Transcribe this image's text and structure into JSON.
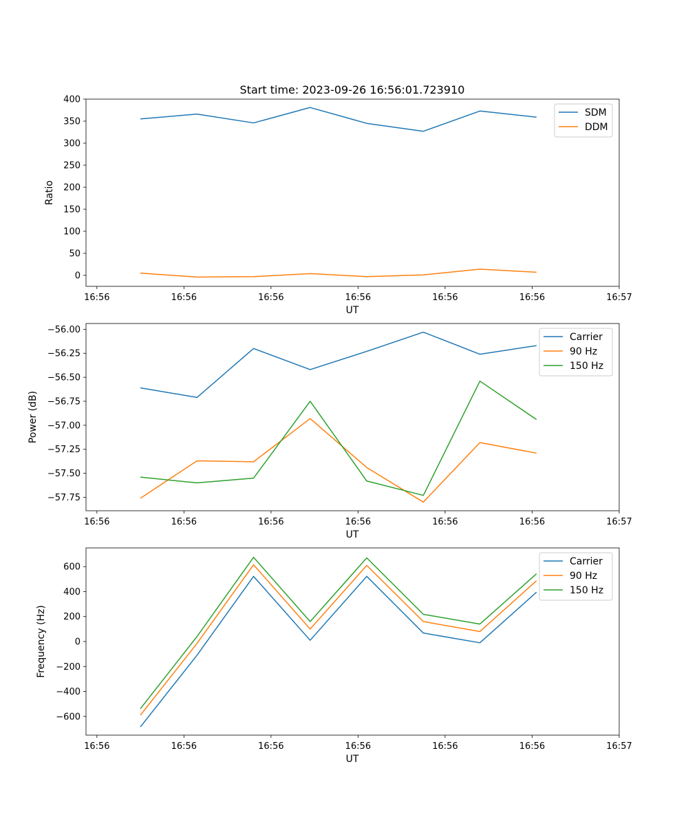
{
  "figure": {
    "title": "Start time: 2023-09-26 16:56:01.723910"
  },
  "colors": {
    "blue": "#1f77b4",
    "orange": "#ff7f0e",
    "green": "#2ca02c"
  },
  "chart_data": [
    {
      "type": "line",
      "title": "Start time: 2023-09-26 16:56:01.723910",
      "xlabel": "UT",
      "ylabel": "Ratio",
      "x": [
        0.5,
        1.15,
        1.8,
        2.45,
        3.1,
        3.75,
        4.4,
        5.05
      ],
      "xlim": [
        -0.125,
        6.0
      ],
      "xticks": [
        0,
        1,
        2,
        3,
        4,
        5,
        6
      ],
      "xtick_labels": [
        "16:56",
        "16:56",
        "16:56",
        "16:56",
        "16:56",
        "16:56",
        "16:57"
      ],
      "ylim": [
        -25,
        400
      ],
      "yticks": [
        0,
        50,
        100,
        150,
        200,
        250,
        300,
        350,
        400
      ],
      "legend": "top-right",
      "series": [
        {
          "name": "SDM",
          "color": "#1f77b4",
          "values": [
            355,
            366,
            346,
            381,
            345,
            327,
            373,
            359
          ]
        },
        {
          "name": "DDM",
          "color": "#ff7f0e",
          "values": [
            5,
            -4,
            -3,
            4,
            -3,
            1,
            14,
            7
          ]
        }
      ]
    },
    {
      "type": "line",
      "xlabel": "UT",
      "ylabel": "Power (dB)",
      "x": [
        0.5,
        1.15,
        1.8,
        2.45,
        3.1,
        3.75,
        4.4,
        5.05
      ],
      "xlim": [
        -0.125,
        6.0
      ],
      "xticks": [
        0,
        1,
        2,
        3,
        4,
        5,
        6
      ],
      "xtick_labels": [
        "16:56",
        "16:56",
        "16:56",
        "16:56",
        "16:56",
        "16:56",
        "16:57"
      ],
      "ylim": [
        -57.89,
        -55.94
      ],
      "yticks": [
        -57.75,
        -57.5,
        -57.25,
        -57.0,
        -56.75,
        -56.5,
        -56.25,
        -56.0
      ],
      "ytick_labels": [
        "−57.75",
        "−57.50",
        "−57.25",
        "−57.00",
        "−56.75",
        "−56.50",
        "−56.25",
        "−56.00"
      ],
      "legend": "top-right",
      "series": [
        {
          "name": "Carrier",
          "color": "#1f77b4",
          "values": [
            -56.61,
            -56.71,
            -56.2,
            -56.42,
            -56.23,
            -56.03,
            -56.26,
            -56.17
          ]
        },
        {
          "name": "90 Hz",
          "color": "#ff7f0e",
          "values": [
            -57.76,
            -57.37,
            -57.38,
            -56.93,
            -57.44,
            -57.8,
            -57.18,
            -57.29
          ]
        },
        {
          "name": "150 Hz",
          "color": "#2ca02c",
          "values": [
            -57.54,
            -57.6,
            -57.55,
            -56.75,
            -57.58,
            -57.73,
            -56.54,
            -56.94
          ]
        }
      ]
    },
    {
      "type": "line",
      "xlabel": "UT",
      "ylabel": "Frequency (Hz)",
      "x": [
        0.5,
        1.15,
        1.8,
        2.45,
        3.1,
        3.75,
        4.4,
        5.05
      ],
      "xlim": [
        -0.125,
        6.0
      ],
      "xticks": [
        0,
        1,
        2,
        3,
        4,
        5,
        6
      ],
      "xtick_labels": [
        "16:56",
        "16:56",
        "16:56",
        "16:56",
        "16:56",
        "16:56",
        "16:57"
      ],
      "ylim": [
        -750,
        750
      ],
      "yticks": [
        -600,
        -400,
        -200,
        0,
        200,
        400,
        600
      ],
      "ytick_labels": [
        "−600",
        "−400",
        "−200",
        "0",
        "200",
        "400",
        "600"
      ],
      "legend": "top-right",
      "series": [
        {
          "name": "Carrier",
          "color": "#1f77b4",
          "values": [
            -684,
            -110,
            522,
            10,
            522,
            68,
            -10,
            395
          ]
        },
        {
          "name": "90 Hz",
          "color": "#ff7f0e",
          "values": [
            -590,
            -15,
            615,
            100,
            610,
            160,
            80,
            487
          ]
        },
        {
          "name": "150 Hz",
          "color": "#2ca02c",
          "values": [
            -538,
            40,
            675,
            160,
            670,
            218,
            140,
            543
          ]
        }
      ]
    }
  ]
}
